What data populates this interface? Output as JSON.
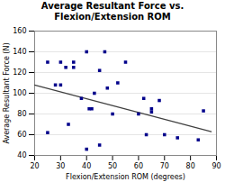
{
  "chart_data": {
    "type": "scatter",
    "title": "Average Resultant Force vs.\nFlexion/Extension ROM",
    "xlabel": "Flexion/Extension ROM (degrees)",
    "ylabel": "Average Resultant Force (N)",
    "x": [
      25,
      25,
      28,
      30,
      30,
      32,
      33,
      35,
      35,
      38,
      40,
      40,
      41,
      42,
      43,
      45,
      45,
      47,
      48,
      50,
      52,
      55,
      60,
      62,
      63,
      65,
      65,
      68,
      70,
      75,
      83,
      85
    ],
    "values": [
      62,
      130,
      108,
      108,
      130,
      125,
      70,
      125,
      130,
      95,
      140,
      46,
      85,
      85,
      100,
      122,
      50,
      140,
      105,
      80,
      110,
      130,
      80,
      95,
      60,
      82,
      85,
      93,
      60,
      57,
      55,
      83
    ],
    "color": "#00008B",
    "marker": "square",
    "trendline": {
      "x": [
        20,
        88
      ],
      "values": [
        108,
        63
      ],
      "color": "#404040"
    },
    "xlim": [
      20,
      90
    ],
    "ylim": [
      40,
      160
    ],
    "xticks": [
      20,
      30,
      40,
      50,
      60,
      70,
      80,
      90
    ],
    "yticks": [
      40,
      60,
      80,
      100,
      120,
      140,
      160
    ],
    "grid": true
  }
}
